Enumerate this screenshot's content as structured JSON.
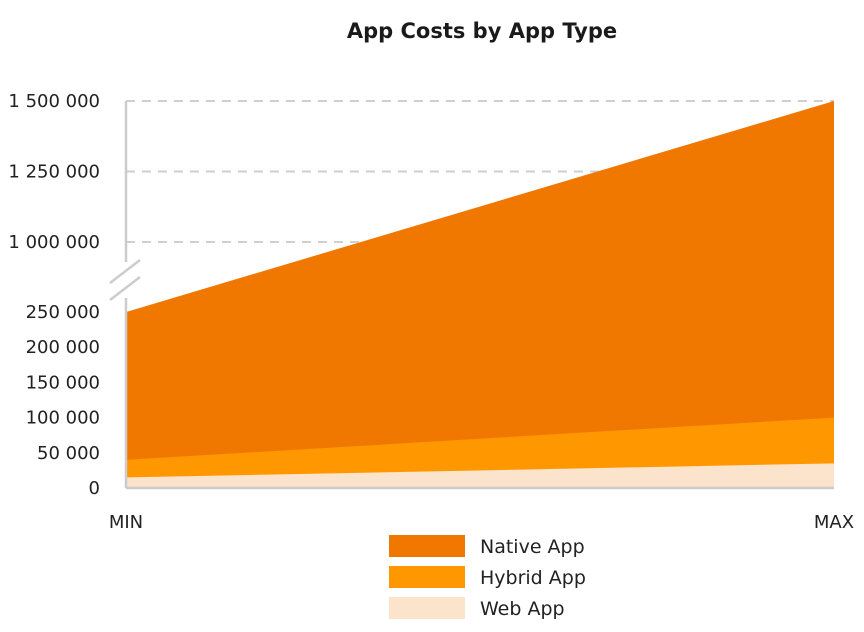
{
  "chart_data": {
    "type": "area",
    "title": "App Costs by App Type",
    "xlabel": "",
    "ylabel": "",
    "x": [
      "MIN",
      "MAX"
    ],
    "series": [
      {
        "name": "Native App",
        "values": [
          250000,
          1500000
        ],
        "color": "#f07800"
      },
      {
        "name": "Hybrid App",
        "values": [
          40000,
          100000
        ],
        "color": "#ff9800"
      },
      {
        "name": "Web App",
        "values": [
          15000,
          35000
        ],
        "color": "#fbe3cc"
      }
    ],
    "y_ticks_lower": [
      {
        "value": 0,
        "label": "0"
      },
      {
        "value": 50000,
        "label": "50 000"
      },
      {
        "value": 100000,
        "label": "100 000"
      },
      {
        "value": 150000,
        "label": "150 000"
      },
      {
        "value": 200000,
        "label": "200 000"
      },
      {
        "value": 250000,
        "label": "250 000"
      }
    ],
    "y_ticks_upper": [
      {
        "value": 1000000,
        "label": "1 000 000"
      },
      {
        "value": 1250000,
        "label": "1 250 000"
      },
      {
        "value": 1500000,
        "label": "1 500 000"
      }
    ],
    "y_axis_break": [
      250000,
      1000000
    ],
    "ylim": [
      0,
      1500000
    ],
    "grid": "dashed horizontal lines on upper segment",
    "legend_position": "bottom-center"
  }
}
